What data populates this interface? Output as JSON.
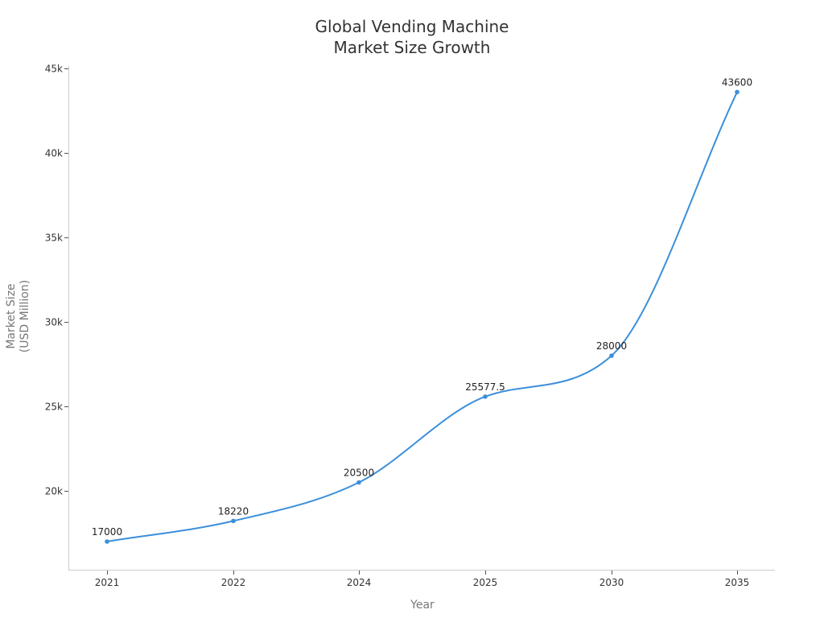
{
  "chart_data": {
    "type": "line",
    "title": "Global Vending Machine Market Size Growth",
    "title_lines": [
      "Global Vending Machine",
      "Market Size Growth"
    ],
    "xlabel": "Year",
    "ylabel": "Market Size (USD Million)",
    "ylabel_lines": [
      "Market Size",
      "(USD Million)"
    ],
    "categories": [
      "2021",
      "2022",
      "2024",
      "2025",
      "2030",
      "2035"
    ],
    "series": [
      {
        "name": "Market Size",
        "values": [
          17000,
          18220,
          20500,
          25577.5,
          28000,
          43600
        ],
        "labels": [
          "17000",
          "18220",
          "20500",
          "25577.5",
          "28000",
          "43600"
        ],
        "color": "#3b8fdb"
      }
    ],
    "y_ticks": [
      20000,
      25000,
      30000,
      35000,
      40000,
      45000
    ],
    "y_tick_labels": [
      "20k",
      "25k",
      "30k",
      "35k",
      "40k",
      "45k"
    ],
    "ylim": [
      15000,
      45000
    ],
    "grid": false,
    "legend": "none",
    "curve": "smooth",
    "data_labels": true
  }
}
